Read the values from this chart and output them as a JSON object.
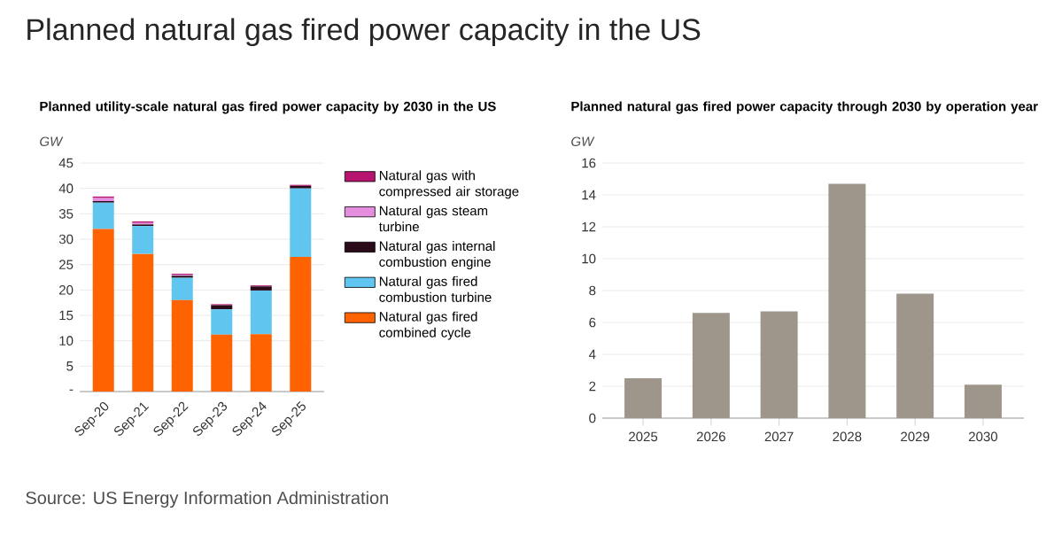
{
  "chart_data": [
    {
      "type": "bar",
      "title": "Planned natural gas fired power capacity in the US",
      "subtitle": "Planned utility-scale natural gas fired power capacity by 2030 in the US",
      "ylabel": "GW",
      "categories": [
        "Sep-20",
        "Sep-21",
        "Sep-22",
        "Sep-23",
        "Sep-24",
        "Sep-25"
      ],
      "stacked": true,
      "series": [
        {
          "name": "Natural gas fired combined cycle",
          "color": "#ff6200",
          "values": [
            32,
            27.1,
            18,
            11.2,
            11.3,
            26.5
          ]
        },
        {
          "name": "Natural gas fired combustion turbine",
          "color": "#60c6ef",
          "values": [
            5.2,
            5.5,
            4.4,
            5.0,
            8.6,
            13.5
          ]
        },
        {
          "name": "Natural gas internal combustion engine",
          "color": "#2b0a1a",
          "values": [
            0.3,
            0.3,
            0.4,
            0.8,
            0.8,
            0.5
          ]
        },
        {
          "name": "Natural gas steam turbine",
          "color": "#e58ddf",
          "values": [
            0.6,
            0.3,
            0.2,
            0,
            0,
            0
          ]
        },
        {
          "name": "Natural gas with compressed air storage",
          "color": "#b5146f",
          "values": [
            0.3,
            0.3,
            0.2,
            0.2,
            0.2,
            0.2
          ]
        }
      ],
      "ylim": [
        0,
        45
      ],
      "yticks": [
        {
          "value": 0,
          "label": "-"
        },
        5,
        10,
        15,
        20,
        25,
        30,
        35,
        40,
        45
      ],
      "grid": "y",
      "legend": "right",
      "annotations": [
        "Source: US Energy Information Administration"
      ]
    },
    {
      "type": "bar",
      "title": "Planned natural gas fired power capacity through 2030 by operation year",
      "ylabel": "GW",
      "categories": [
        "2025",
        "2026",
        "2027",
        "2028",
        "2029",
        "2030"
      ],
      "series": [
        {
          "color": "#9e958b",
          "values": [
            2.5,
            6.6,
            6.7,
            14.7,
            7.8,
            2.1
          ]
        }
      ],
      "ylim": [
        0,
        16
      ],
      "yticks": [
        0,
        2,
        4,
        6,
        8,
        10,
        12,
        14,
        16
      ],
      "grid": "y"
    }
  ]
}
